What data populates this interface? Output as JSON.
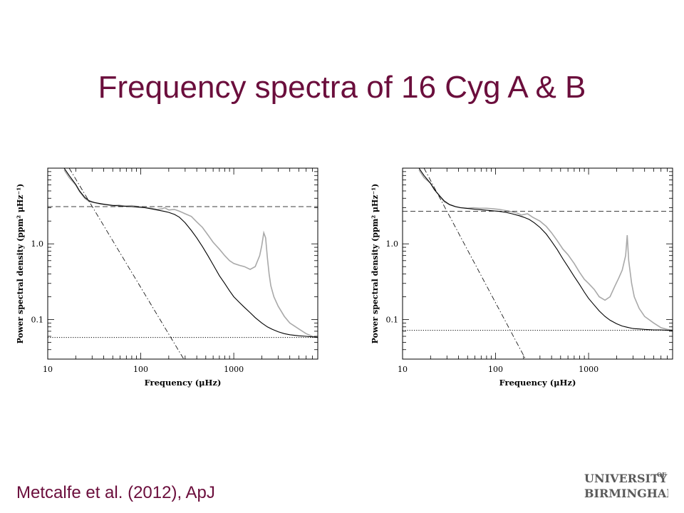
{
  "slide": {
    "title": "Frequency spectra of 16 Cyg A & B",
    "citation": "Metcalfe et al. (2012), ApJ"
  },
  "logo": {
    "line1": "UNIVERSITY",
    "of": "OF",
    "line2": "BIRMINGHAM",
    "color": "#5a5a5a"
  },
  "colors": {
    "title": "#6b0e3c",
    "data": "#a9a9a9",
    "fit": "#000000"
  },
  "chart_data": [
    {
      "type": "line",
      "xlabel": "Frequency (μHz)",
      "ylabel": "Power spectral density (ppm² μHz⁻¹)",
      "xscale": "log",
      "yscale": "log",
      "xlim": [
        10,
        8000
      ],
      "ylim": [
        0.03,
        10
      ],
      "xticks": [
        {
          "v": 10,
          "label": "10"
        },
        {
          "v": 100,
          "label": "100"
        },
        {
          "v": 1000,
          "label": "1000"
        }
      ],
      "yticks": [
        {
          "v": 1.0,
          "label": "1.0"
        },
        {
          "v": 0.1,
          "label": "0.1"
        }
      ],
      "series": [
        {
          "style": "data",
          "x": [
            15,
            17,
            20,
            22,
            25,
            28,
            32,
            37,
            42,
            50,
            58,
            67,
            80,
            95,
            110,
            130,
            150,
            170,
            180,
            200,
            230,
            260,
            300,
            350,
            400,
            460,
            530,
            600,
            700,
            800,
            900,
            1000,
            1150,
            1300,
            1500,
            1700,
            1900,
            2000,
            2100,
            2200,
            2300,
            2400,
            2500,
            2700,
            3000,
            3500,
            4000,
            5000,
            6000,
            7000,
            8000
          ],
          "y": [
            9.5,
            7.5,
            6.0,
            4.9,
            4.0,
            3.6,
            3.5,
            3.35,
            3.3,
            3.2,
            3.25,
            3.15,
            3.2,
            3.1,
            3.05,
            2.95,
            2.85,
            2.9,
            3.0,
            2.8,
            2.85,
            2.7,
            2.5,
            2.3,
            1.95,
            1.65,
            1.3,
            1.05,
            0.85,
            0.7,
            0.6,
            0.55,
            0.52,
            0.5,
            0.46,
            0.5,
            0.7,
            0.95,
            1.4,
            1.2,
            0.65,
            0.4,
            0.28,
            0.2,
            0.15,
            0.11,
            0.09,
            0.075,
            0.065,
            0.06,
            0.058
          ]
        },
        {
          "style": "fit",
          "x": [
            15,
            17,
            20,
            22,
            25,
            28,
            32,
            37,
            42,
            50,
            58,
            67,
            80,
            95,
            110,
            130,
            150,
            180,
            200,
            230,
            260,
            300,
            350,
            400,
            460,
            530,
            600,
            700,
            800,
            900,
            1000,
            1150,
            1300,
            1500,
            1700,
            2000,
            2300,
            2600,
            3000,
            3500,
            4000,
            5000,
            6000,
            7000,
            8000
          ],
          "y": [
            10.0,
            8.0,
            6.1,
            5.0,
            4.1,
            3.7,
            3.5,
            3.4,
            3.3,
            3.22,
            3.18,
            3.14,
            3.1,
            3.05,
            3.0,
            2.9,
            2.8,
            2.68,
            2.6,
            2.45,
            2.25,
            1.9,
            1.5,
            1.2,
            0.92,
            0.69,
            0.53,
            0.38,
            0.3,
            0.24,
            0.2,
            0.168,
            0.145,
            0.123,
            0.106,
            0.09,
            0.08,
            0.074,
            0.069,
            0.065,
            0.063,
            0.061,
            0.06,
            0.059,
            0.058
          ]
        },
        {
          "style": "dashed",
          "x": [
            10,
            8000
          ],
          "y": [
            3.1,
            3.1
          ]
        },
        {
          "style": "dashdot",
          "x": [
            17,
            290
          ],
          "y": [
            10.0,
            0.03
          ]
        },
        {
          "style": "dotted",
          "x": [
            10,
            8000
          ],
          "y": [
            0.058,
            0.058
          ]
        }
      ]
    },
    {
      "type": "line",
      "xlabel": "Frequency (μHz)",
      "ylabel": "Power spectral density (ppm² μHz⁻¹)",
      "xscale": "log",
      "yscale": "log",
      "xlim": [
        10,
        8000
      ],
      "ylim": [
        0.03,
        10
      ],
      "xticks": [
        {
          "v": 10,
          "label": "10"
        },
        {
          "v": 100,
          "label": "100"
        },
        {
          "v": 1000,
          "label": "1000"
        }
      ],
      "yticks": [
        {
          "v": 1.0,
          "label": "1.0"
        },
        {
          "v": 0.1,
          "label": "0.1"
        }
      ],
      "series": [
        {
          "style": "data",
          "x": [
            15,
            17,
            20,
            22,
            25,
            28,
            32,
            37,
            42,
            50,
            58,
            67,
            80,
            95,
            110,
            130,
            150,
            170,
            190,
            220,
            250,
            300,
            350,
            400,
            460,
            530,
            600,
            700,
            800,
            900,
            1000,
            1150,
            1300,
            1500,
            1700,
            1900,
            2100,
            2300,
            2500,
            2600,
            2700,
            2900,
            3100,
            3500,
            4000,
            5000,
            6000,
            7000,
            8000
          ],
          "y": [
            9.5,
            7.5,
            6.3,
            5.2,
            4.3,
            3.6,
            3.3,
            3.1,
            3.0,
            2.95,
            3.0,
            2.95,
            2.95,
            2.9,
            2.85,
            2.75,
            2.65,
            2.55,
            2.4,
            2.5,
            2.25,
            2.0,
            1.7,
            1.4,
            1.1,
            0.85,
            0.72,
            0.55,
            0.42,
            0.34,
            0.3,
            0.25,
            0.2,
            0.18,
            0.2,
            0.27,
            0.35,
            0.45,
            0.7,
            1.3,
            0.6,
            0.3,
            0.2,
            0.14,
            0.11,
            0.09,
            0.078,
            0.074,
            0.072
          ]
        },
        {
          "style": "fit",
          "x": [
            15,
            17,
            20,
            22,
            25,
            28,
            32,
            37,
            42,
            50,
            58,
            67,
            80,
            95,
            110,
            130,
            150,
            180,
            200,
            230,
            260,
            300,
            350,
            400,
            460,
            530,
            600,
            700,
            800,
            900,
            1000,
            1150,
            1300,
            1500,
            1700,
            2000,
            2300,
            2600,
            3000,
            3500,
            4000,
            5000,
            6000,
            7000,
            8000
          ],
          "y": [
            10.0,
            8.0,
            6.3,
            5.2,
            4.3,
            3.7,
            3.3,
            3.1,
            3.0,
            2.93,
            2.88,
            2.83,
            2.78,
            2.73,
            2.68,
            2.6,
            2.5,
            2.35,
            2.25,
            2.1,
            1.9,
            1.65,
            1.35,
            1.08,
            0.84,
            0.63,
            0.5,
            0.37,
            0.29,
            0.23,
            0.19,
            0.155,
            0.13,
            0.11,
            0.098,
            0.088,
            0.082,
            0.079,
            0.076,
            0.075,
            0.074,
            0.073,
            0.073,
            0.072,
            0.072
          ]
        },
        {
          "style": "dashed",
          "x": [
            10,
            8000
          ],
          "y": [
            2.7,
            2.7
          ]
        },
        {
          "style": "dashdot",
          "x": [
            17,
            210
          ],
          "y": [
            10.0,
            0.03
          ]
        },
        {
          "style": "dotted",
          "x": [
            10,
            8000
          ],
          "y": [
            0.072,
            0.072
          ]
        }
      ]
    }
  ]
}
